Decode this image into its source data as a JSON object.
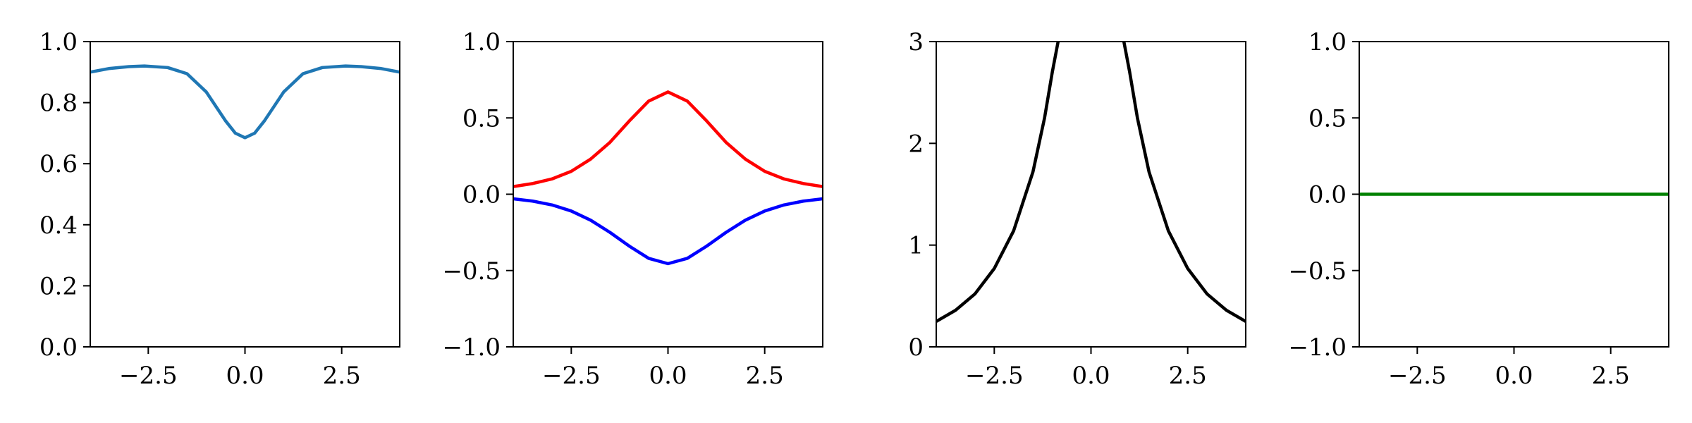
{
  "chart_data": [
    {
      "type": "line",
      "title": "",
      "xlabel": "",
      "ylabel": "",
      "xlim": [
        -4,
        4
      ],
      "ylim": [
        0,
        1
      ],
      "grid": false,
      "xticks": [
        -2.5,
        0.0,
        2.5
      ],
      "xtick_labels": [
        "−2.5",
        "0.0",
        "2.5"
      ],
      "yticks": [
        0.0,
        0.2,
        0.4,
        0.6,
        0.8,
        1.0
      ],
      "ytick_labels": [
        "0.0",
        "0.2",
        "0.4",
        "0.6",
        "0.8",
        "1.0"
      ],
      "series": [
        {
          "color": "#1f77b4",
          "x": [
            -4,
            -3.5,
            -3,
            -2.6,
            -2,
            -1.5,
            -1,
            -0.5,
            -0.25,
            0,
            0.25,
            0.5,
            1,
            1.5,
            2,
            2.6,
            3,
            3.5,
            4
          ],
          "y": [
            0.9,
            0.912,
            0.918,
            0.92,
            0.915,
            0.895,
            0.835,
            0.74,
            0.7,
            0.685,
            0.7,
            0.74,
            0.835,
            0.895,
            0.915,
            0.92,
            0.918,
            0.912,
            0.9
          ]
        }
      ]
    },
    {
      "type": "line",
      "title": "",
      "xlabel": "",
      "ylabel": "",
      "xlim": [
        -4,
        4
      ],
      "ylim": [
        -1,
        1
      ],
      "grid": false,
      "xticks": [
        -2.5,
        0.0,
        2.5
      ],
      "xtick_labels": [
        "−2.5",
        "0.0",
        "2.5"
      ],
      "yticks": [
        -1.0,
        -0.5,
        0.0,
        0.5,
        1.0
      ],
      "ytick_labels": [
        "−1.0",
        "−0.5",
        "0.0",
        "0.5",
        "1.0"
      ],
      "series": [
        {
          "color": "#ff0000",
          "x": [
            -4,
            -3.5,
            -3,
            -2.5,
            -2,
            -1.5,
            -1,
            -0.5,
            0,
            0.5,
            1,
            1.5,
            2,
            2.5,
            3,
            3.5,
            4
          ],
          "y": [
            0.05,
            0.07,
            0.1,
            0.15,
            0.23,
            0.34,
            0.48,
            0.61,
            0.67,
            0.61,
            0.48,
            0.34,
            0.23,
            0.15,
            0.1,
            0.07,
            0.05
          ]
        },
        {
          "color": "#0000ff",
          "x": [
            -4,
            -3.5,
            -3,
            -2.5,
            -2,
            -1.5,
            -1,
            -0.5,
            0,
            0.5,
            1,
            1.5,
            2,
            2.5,
            3,
            3.5,
            4
          ],
          "y": [
            -0.03,
            -0.045,
            -0.07,
            -0.11,
            -0.17,
            -0.25,
            -0.34,
            -0.42,
            -0.455,
            -0.42,
            -0.34,
            -0.25,
            -0.17,
            -0.11,
            -0.07,
            -0.045,
            -0.03
          ]
        }
      ]
    },
    {
      "type": "line",
      "title": "",
      "xlabel": "",
      "ylabel": "",
      "xlim": [
        -4,
        4
      ],
      "ylim": [
        0,
        3
      ],
      "grid": false,
      "xticks": [
        -2.5,
        0.0,
        2.5
      ],
      "xtick_labels": [
        "−2.5",
        "0.0",
        "2.5"
      ],
      "yticks": [
        0,
        1,
        2,
        3
      ],
      "ytick_labels": [
        "0",
        "1",
        "2",
        "3"
      ],
      "series": [
        {
          "color": "#000000",
          "x": [
            -4,
            -3.5,
            -3,
            -2.5,
            -2,
            -1.5,
            -1.2,
            -1,
            -0.85
          ],
          "y": [
            0.25,
            0.36,
            0.52,
            0.77,
            1.14,
            1.72,
            2.25,
            2.7,
            3.0
          ]
        },
        {
          "color": "#000000",
          "x": [
            0.85,
            1,
            1.2,
            1.5,
            2,
            2.5,
            3,
            3.5,
            4
          ],
          "y": [
            3.0,
            2.7,
            2.25,
            1.72,
            1.14,
            0.77,
            0.52,
            0.36,
            0.25
          ]
        }
      ]
    },
    {
      "type": "line",
      "title": "",
      "xlabel": "",
      "ylabel": "",
      "xlim": [
        -4,
        4
      ],
      "ylim": [
        -1,
        1
      ],
      "grid": false,
      "xticks": [
        -2.5,
        0.0,
        2.5
      ],
      "xtick_labels": [
        "−2.5",
        "0.0",
        "2.5"
      ],
      "yticks": [
        -1.0,
        -0.5,
        0.0,
        0.5,
        1.0
      ],
      "ytick_labels": [
        "−1.0",
        "−0.5",
        "0.0",
        "0.5",
        "1.0"
      ],
      "series": [
        {
          "color": "#008000",
          "x": [
            -4,
            4
          ],
          "y": [
            0.0,
            0.0
          ]
        }
      ]
    }
  ]
}
